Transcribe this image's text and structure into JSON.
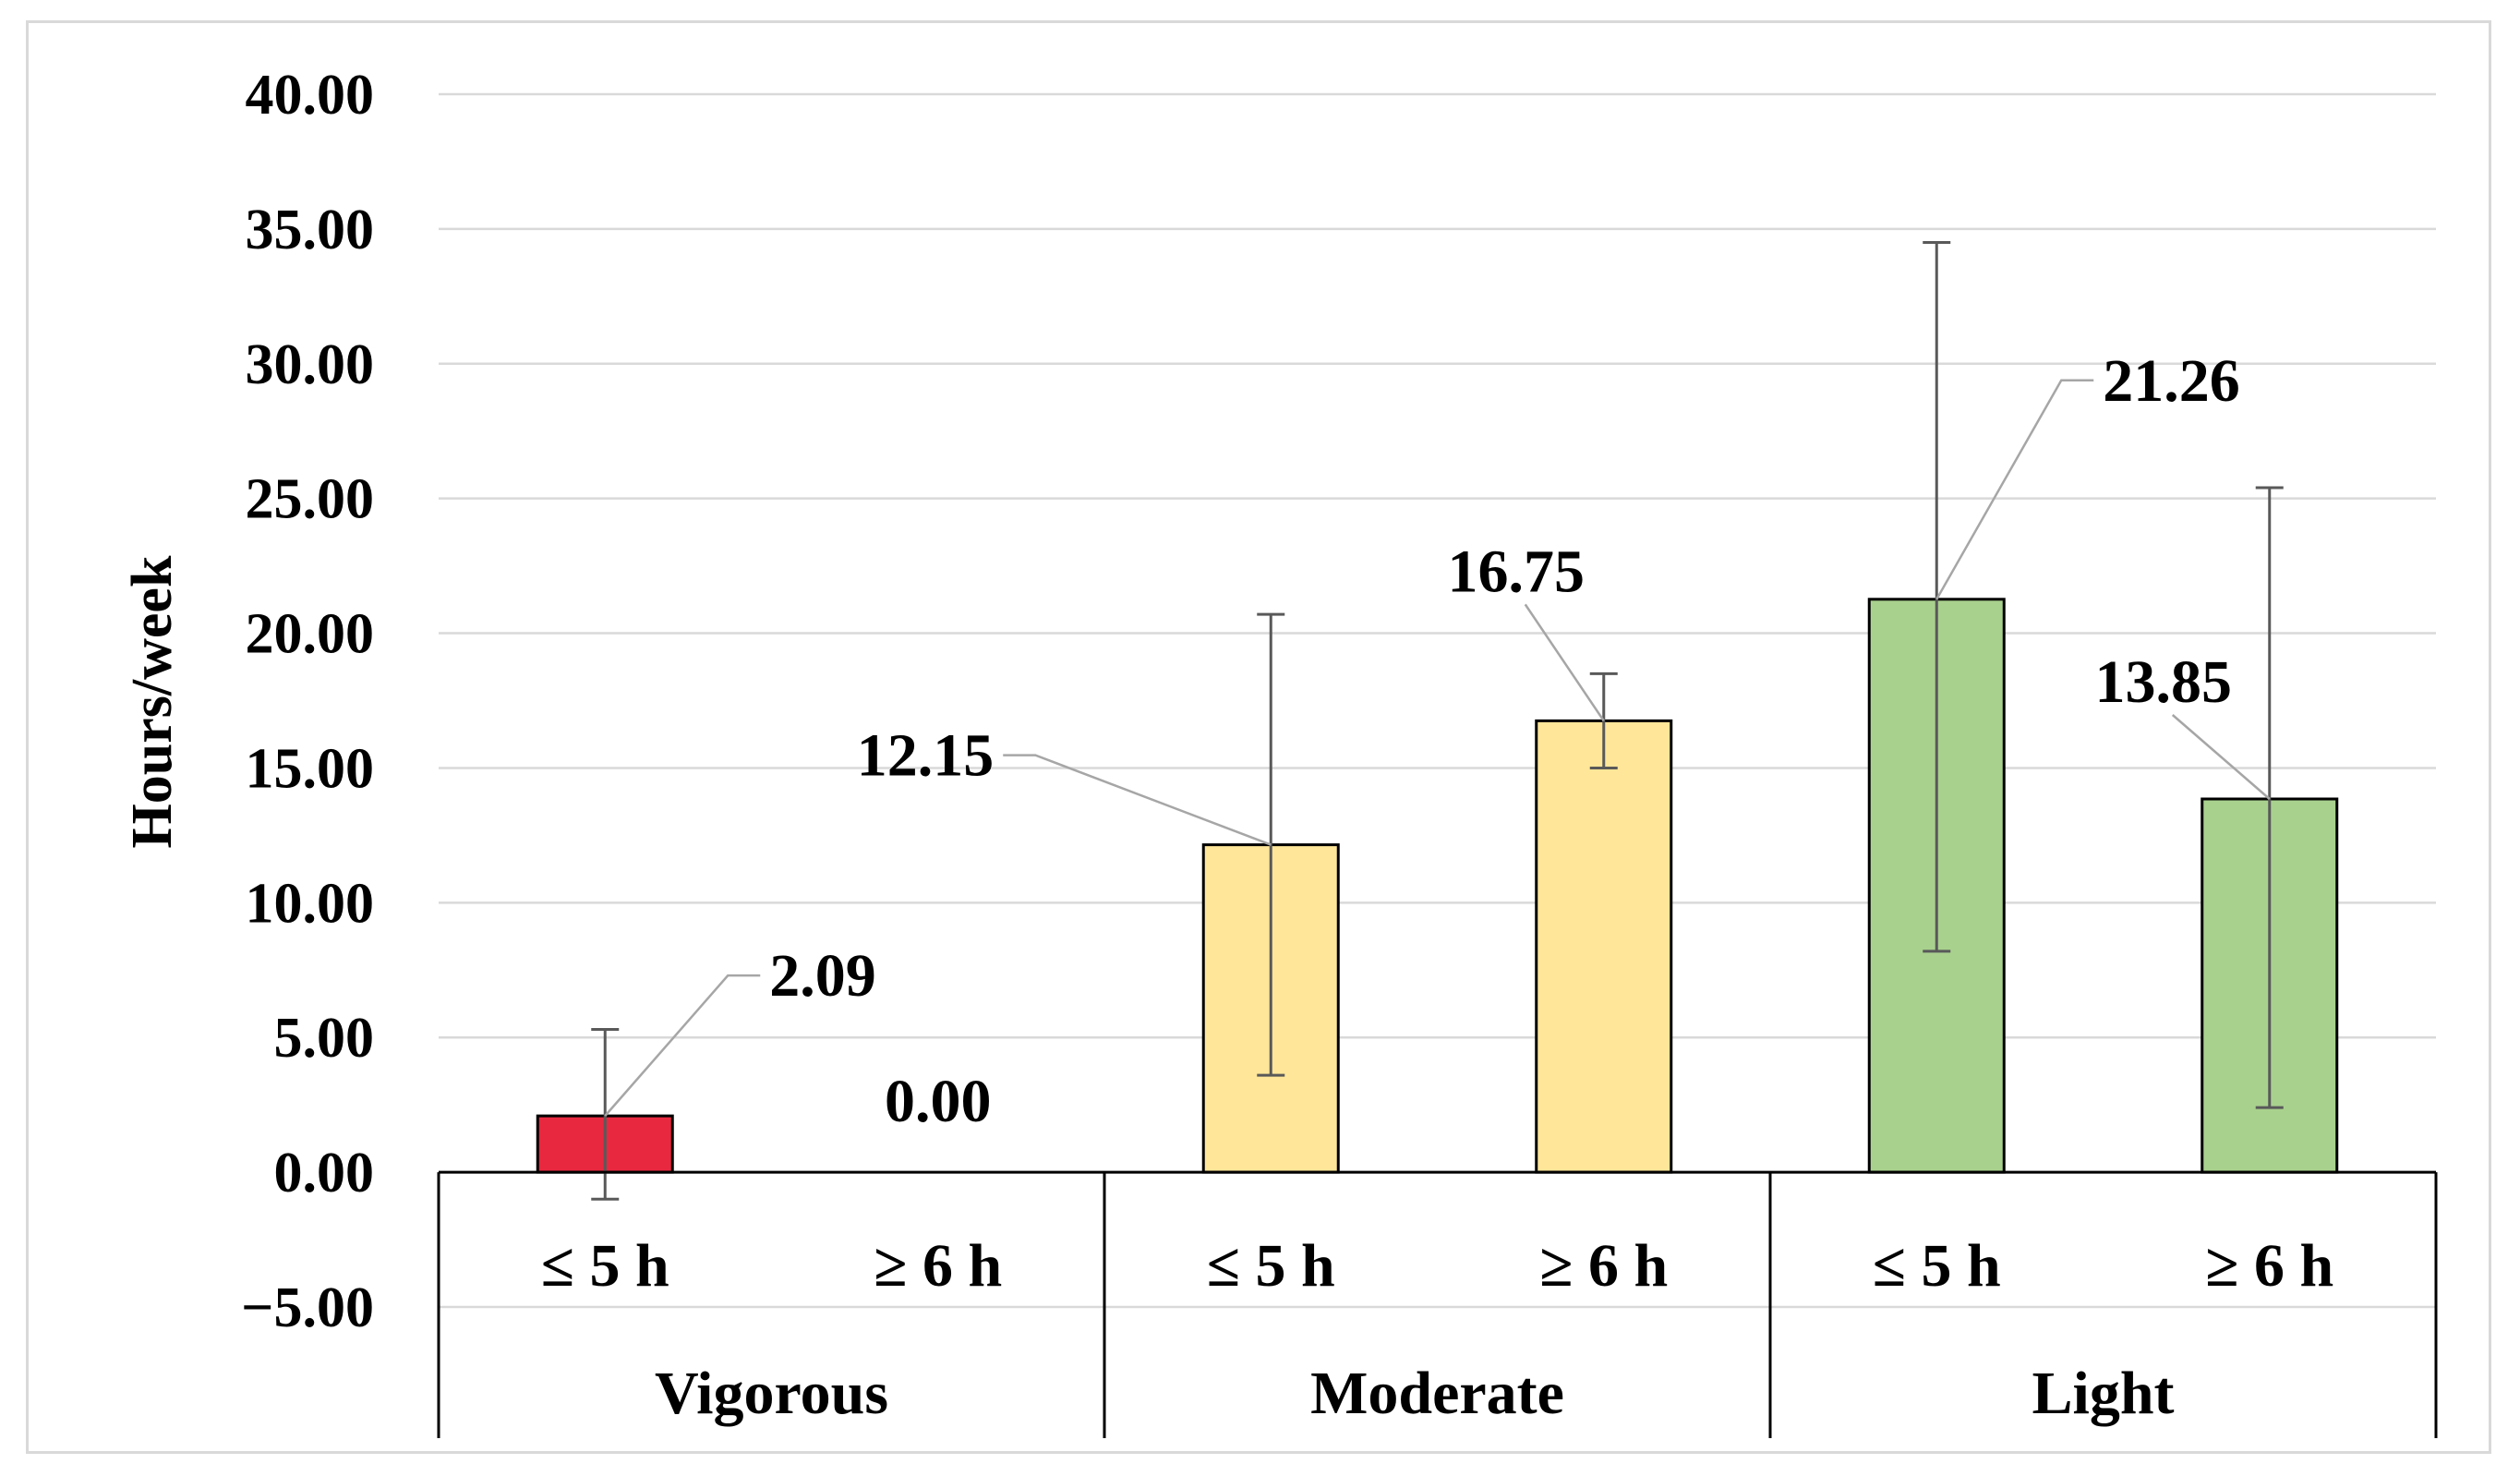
{
  "chart_data": {
    "type": "bar",
    "title": "",
    "xlabel": "",
    "ylabel": "Hours/week",
    "ylim": [
      -5,
      40
    ],
    "ytick_step": 5,
    "ytick_labels": [
      "−5.00",
      "0.00",
      "5.00",
      "10.00",
      "15.00",
      "20.00",
      "25.00",
      "30.00",
      "35.00",
      "40.00"
    ],
    "grid": true,
    "legend": "none",
    "groups": [
      {
        "name": "Vigorous",
        "color": "#e8283f"
      },
      {
        "name": "Moderate",
        "color": "#ffe699"
      },
      {
        "name": "Light",
        "color": "#a9d18e"
      }
    ],
    "bars": [
      {
        "group": "Vigorous",
        "category": "≤ 5 h",
        "value": 2.09,
        "value_label": "2.09",
        "error_low": -1.0,
        "error_high": 5.3,
        "color": "#e8283f"
      },
      {
        "group": "Vigorous",
        "category": "≥ 6 h",
        "value": 0.0,
        "value_label": "0.00",
        "error_low": null,
        "error_high": null,
        "color": "#e8283f"
      },
      {
        "group": "Moderate",
        "category": "≤ 5 h",
        "value": 12.15,
        "value_label": "12.15",
        "error_low": 3.6,
        "error_high": 20.7,
        "color": "#ffe699"
      },
      {
        "group": "Moderate",
        "category": "≥ 6 h",
        "value": 16.75,
        "value_label": "16.75",
        "error_low": 15.0,
        "error_high": 18.5,
        "color": "#ffe699"
      },
      {
        "group": "Light",
        "category": "≤ 5 h",
        "value": 21.26,
        "value_label": "21.26",
        "error_low": 8.2,
        "error_high": 34.5,
        "color": "#a9d18e"
      },
      {
        "group": "Light",
        "category": "≥ 6 h",
        "value": 13.85,
        "value_label": "13.85",
        "error_low": 2.4,
        "error_high": 25.4,
        "color": "#a9d18e"
      }
    ],
    "bar_outline_color": "#000000",
    "error_bar_color": "#595959",
    "grid_color": "#d9d9d9"
  }
}
